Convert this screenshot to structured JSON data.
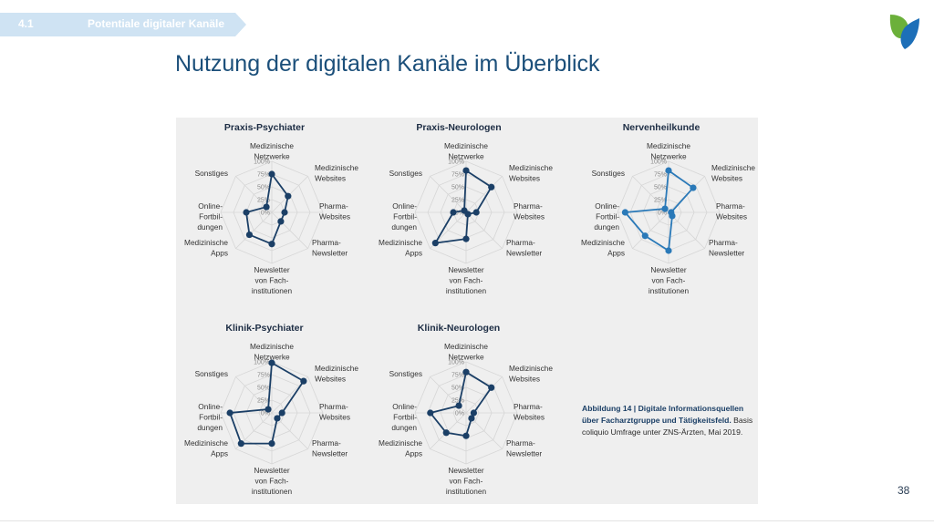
{
  "header": {
    "section_number": "4.1",
    "section_title": "Potentiale digitaler Kanäle"
  },
  "title": "Nutzung der digitalen Kanäle im Überblick",
  "page_number": "38",
  "caption": {
    "bold": "Abbildung 14 | Digitale Informationsquellen über Facharztgruppe und Tätigkeitsfeld.",
    "normal": " Basis coliquio Umfrage unter ZNS-Ärzten, Mai 2019."
  },
  "colors": {
    "dark_series": "#1b3f66",
    "light_series": "#2a79b8",
    "header": "#cfe3f3",
    "title": "#1b4f7a"
  },
  "chart_data": [
    {
      "type": "radar",
      "title": "Praxis-Psychiater",
      "axes": [
        "Medizinische\nNetzwerke",
        "Medizinische\nWebsites",
        "Pharma-\nWebsites",
        "Pharma-\nNewsletter",
        "Newsletter\nvon Fach-\ninstitutionen",
        "Medizinische\nApps",
        "Online-\nFortbil-\ndungen",
        "Sonstiges"
      ],
      "ticks": [
        "100%",
        "75%",
        "50%",
        "25%",
        "0%"
      ],
      "range": [
        0,
        100
      ],
      "values": [
        75,
        45,
        25,
        25,
        62,
        62,
        50,
        15
      ],
      "color": "#1b3f66"
    },
    {
      "type": "radar",
      "title": "Praxis-Neurologen",
      "axes": [
        "Medizinische\nNetzwerke",
        "Medizinische\nWebsites",
        "Pharma-\nWebsites",
        "Pharma-\nNewsletter",
        "Newsletter\nvon Fach-\ninstitutionen",
        "Medizinische\nApps",
        "Online-\nFortbil-\ndungen",
        "Sonstiges"
      ],
      "ticks": [
        "100%",
        "75%",
        "50%",
        "25%",
        "0%"
      ],
      "range": [
        0,
        100
      ],
      "values": [
        82,
        70,
        20,
        5,
        52,
        85,
        25,
        5
      ],
      "color": "#1b3f66"
    },
    {
      "type": "radar",
      "title": "Nervenheilkunde",
      "axes": [
        "Medizinische\nNetzwerke",
        "Medizinische\nWebsites",
        "Pharma-\nWebsites",
        "Pharma-\nNewsletter",
        "Newsletter\nvon Fach-\ninstitutionen",
        "Medizinische\nApps",
        "Online-\nFortbil-\ndungen",
        "Sonstiges"
      ],
      "ticks": [
        "100%",
        "75%",
        "50%",
        "25%",
        "0%"
      ],
      "range": [
        0,
        100
      ],
      "values": [
        82,
        68,
        5,
        10,
        75,
        65,
        85,
        10
      ],
      "color": "#2a79b8"
    },
    {
      "type": "radar",
      "title": "Klinik-Psychiater",
      "axes": [
        "Medizinische\nNetzwerke",
        "Medizinische\nWebsites",
        "Pharma-\nWebsites",
        "Pharma-\nNewsletter",
        "Newsletter\nvon Fach-\ninstitutionen",
        "Medizinische\nApps",
        "Online-\nFortbil-\ndungen",
        "Sonstiges"
      ],
      "ticks": [
        "100%",
        "75%",
        "50%",
        "25%",
        "0%"
      ],
      "range": [
        0,
        100
      ],
      "values": [
        98,
        88,
        20,
        15,
        60,
        85,
        82,
        10
      ],
      "color": "#1b3f66"
    },
    {
      "type": "radar",
      "title": "Klinik-Neurologen",
      "axes": [
        "Medizinische\nNetzwerke",
        "Medizinische\nWebsites",
        "Pharma-\nWebsites",
        "Pharma-\nNewsletter",
        "Newsletter\nvon Fach-\ninstitutionen",
        "Medizinische\nApps",
        "Online-\nFortbil-\ndungen",
        "Sonstiges"
      ],
      "ticks": [
        "100%",
        "75%",
        "50%",
        "25%",
        "0%"
      ],
      "range": [
        0,
        100
      ],
      "values": [
        80,
        70,
        15,
        15,
        45,
        55,
        70,
        20
      ],
      "color": "#1b3f66"
    }
  ]
}
